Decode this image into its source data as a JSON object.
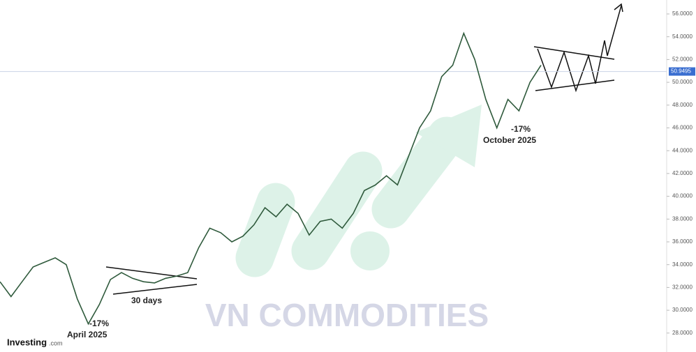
{
  "chart_data": {
    "type": "line",
    "categories": [
      null,
      null,
      null,
      null,
      null,
      null,
      null,
      null,
      null,
      null,
      null,
      null,
      null,
      null,
      null,
      null,
      null,
      null,
      null,
      null,
      null,
      null,
      null,
      null,
      null,
      null,
      null,
      null,
      null,
      null,
      null,
      null,
      null,
      null,
      null,
      null,
      null,
      null,
      null,
      null,
      null,
      null,
      null,
      null,
      null,
      null,
      null,
      null,
      null,
      null
    ],
    "series": [
      {
        "color": "#2f5a3c",
        "values": [
          32.5,
          31.2,
          32.5,
          33.8,
          34.2,
          34.6,
          34.0,
          31.0,
          28.8,
          30.5,
          32.7,
          33.3,
          32.8,
          32.5,
          32.4,
          32.8,
          33.0,
          33.3,
          35.5,
          37.2,
          36.8,
          36.0,
          36.5,
          37.5,
          39.0,
          38.2,
          39.3,
          38.5,
          36.6,
          37.8,
          38.0,
          37.2,
          38.5,
          40.5,
          41.0,
          41.8,
          41.0,
          43.5,
          46.0,
          47.5,
          50.5,
          51.5,
          54.3,
          52.0,
          48.5,
          46.0,
          48.5,
          47.5,
          50.0,
          51.5
        ]
      }
    ],
    "ylim": [
      27,
      57
    ],
    "yticks": [
      {
        "value": 28,
        "label": "28.0000"
      },
      {
        "value": 30,
        "label": "30.0000"
      },
      {
        "value": 32,
        "label": "32.0000"
      },
      {
        "value": 34,
        "label": "34.0000"
      },
      {
        "value": 36,
        "label": "36.0000"
      },
      {
        "value": 38,
        "label": "38.0000"
      },
      {
        "value": 40,
        "label": "40.0000"
      },
      {
        "value": 42,
        "label": "42.0000"
      },
      {
        "value": 44,
        "label": "44.0000"
      },
      {
        "value": 46,
        "label": "46.0000"
      },
      {
        "value": 48,
        "label": "48.0000"
      },
      {
        "value": 50,
        "label": "50.0000"
      },
      {
        "value": 52,
        "label": "52.0000"
      },
      {
        "value": 54,
        "label": "54.0000"
      },
      {
        "value": 56,
        "label": "56.0000"
      }
    ],
    "last_price": {
      "value": 50.9495,
      "label": "50.9495"
    },
    "annotations": [
      "-17%",
      "April 2025",
      "30 days",
      "-17%",
      "October 2025"
    ],
    "watermark": "VN COMMODITIES",
    "brand": "Investing",
    "brand_suffix": ".com"
  }
}
